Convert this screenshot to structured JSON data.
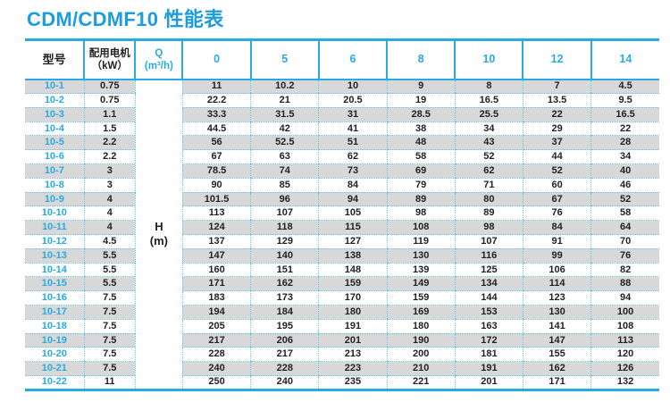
{
  "title": "CDM/CDMF10 性能表",
  "table": {
    "header": {
      "model": "型号",
      "motor": [
        "配用电机",
        "（kW）"
      ],
      "flow": [
        "Q",
        "(m³/h)"
      ],
      "flow_rates": [
        "0",
        "5",
        "6",
        "8",
        "10",
        "12",
        "14"
      ]
    },
    "head_unit": [
      "H",
      "(m)"
    ],
    "rows": [
      {
        "model": "10-1",
        "power_kw": "0.75",
        "head_values": [
          "11",
          "10.2",
          "10",
          "9",
          "8",
          "7",
          "4.5"
        ]
      },
      {
        "model": "10-2",
        "power_kw": "0.75",
        "head_values": [
          "22.2",
          "21",
          "20.5",
          "19",
          "16.5",
          "13.5",
          "9.5"
        ]
      },
      {
        "model": "10-3",
        "power_kw": "1.1",
        "head_values": [
          "33.3",
          "31.5",
          "31",
          "28.5",
          "25.5",
          "22",
          "16.5"
        ]
      },
      {
        "model": "10-4",
        "power_kw": "1.5",
        "head_values": [
          "44.5",
          "42",
          "41",
          "38",
          "34",
          "29",
          "22"
        ]
      },
      {
        "model": "10-5",
        "power_kw": "2.2",
        "head_values": [
          "56",
          "52.5",
          "51",
          "48",
          "43",
          "37",
          "28"
        ]
      },
      {
        "model": "10-6",
        "power_kw": "2.2",
        "head_values": [
          "67",
          "63",
          "62",
          "58",
          "52",
          "44",
          "34"
        ]
      },
      {
        "model": "10-7",
        "power_kw": "3",
        "head_values": [
          "78.5",
          "74",
          "73",
          "69",
          "62",
          "52",
          "40"
        ]
      },
      {
        "model": "10-8",
        "power_kw": "3",
        "head_values": [
          "90",
          "85",
          "84",
          "79",
          "71",
          "60",
          "46"
        ]
      },
      {
        "model": "10-9",
        "power_kw": "4",
        "head_values": [
          "101.5",
          "96",
          "94",
          "89",
          "80",
          "67",
          "52"
        ]
      },
      {
        "model": "10-10",
        "power_kw": "4",
        "head_values": [
          "113",
          "107",
          "105",
          "98",
          "89",
          "76",
          "58"
        ]
      },
      {
        "model": "10-11",
        "power_kw": "4",
        "head_values": [
          "124",
          "118",
          "115",
          "108",
          "98",
          "84",
          "64"
        ]
      },
      {
        "model": "10-12",
        "power_kw": "4.5",
        "head_values": [
          "137",
          "129",
          "127",
          "119",
          "107",
          "91",
          "70"
        ]
      },
      {
        "model": "10-13",
        "power_kw": "5.5",
        "head_values": [
          "147",
          "140",
          "138",
          "130",
          "116",
          "99",
          "76"
        ]
      },
      {
        "model": "10-14",
        "power_kw": "5.5",
        "head_values": [
          "160",
          "151",
          "148",
          "139",
          "125",
          "106",
          "82"
        ]
      },
      {
        "model": "10-15",
        "power_kw": "5.5",
        "head_values": [
          "171",
          "162",
          "159",
          "149",
          "134",
          "114",
          "88"
        ]
      },
      {
        "model": "10-16",
        "power_kw": "7.5",
        "head_values": [
          "183",
          "173",
          "170",
          "159",
          "144",
          "123",
          "94"
        ]
      },
      {
        "model": "10-17",
        "power_kw": "7.5",
        "head_values": [
          "194",
          "184",
          "180",
          "169",
          "153",
          "130",
          "100"
        ]
      },
      {
        "model": "10-18",
        "power_kw": "7.5",
        "head_values": [
          "205",
          "195",
          "191",
          "180",
          "163",
          "141",
          "108"
        ]
      },
      {
        "model": "10-19",
        "power_kw": "7.5",
        "head_values": [
          "217",
          "206",
          "201",
          "190",
          "172",
          "147",
          "113"
        ]
      },
      {
        "model": "10-20",
        "power_kw": "7.5",
        "head_values": [
          "228",
          "217",
          "213",
          "200",
          "181",
          "155",
          "120"
        ]
      },
      {
        "model": "10-21",
        "power_kw": "7.5",
        "head_values": [
          "240",
          "228",
          "223",
          "210",
          "191",
          "162",
          "126"
        ]
      },
      {
        "model": "10-22",
        "power_kw": "11",
        "head_values": [
          "250",
          "240",
          "235",
          "221",
          "201",
          "171",
          "132"
        ]
      }
    ]
  },
  "colors": {
    "accent": "#29abe2",
    "dotted": "#5fc8ec",
    "stripe": "#d8d8d8",
    "title": "#1b9dde",
    "text": "#231f20"
  }
}
